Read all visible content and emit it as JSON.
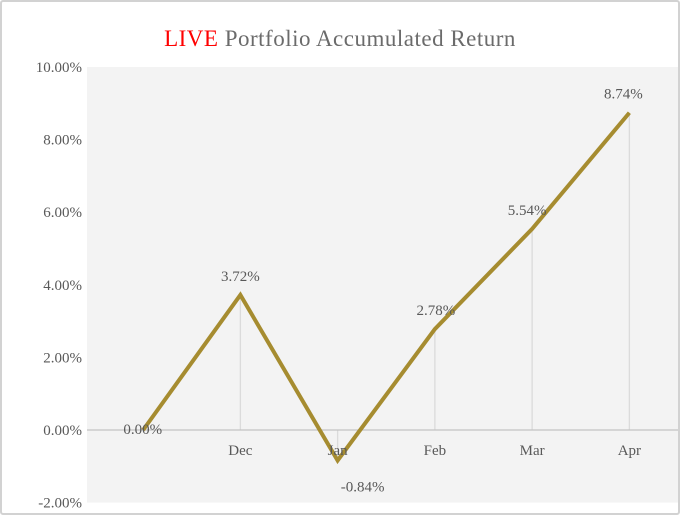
{
  "title": {
    "highlight": "LIVE",
    "text": " Portfolio Accumulated Return"
  },
  "colors": {
    "series_line": "#A68C30",
    "title_highlight": "#FF0000",
    "title_text": "#6B6B6B",
    "axis_text": "#595959",
    "plot_background": "#F3F3F3",
    "axis_line": "#C3C3C3",
    "drop_line": "#DBDBDB",
    "frame_border": "#D2D2D2"
  },
  "chart_data": {
    "type": "line",
    "title": "LIVE Portfolio Accumulated Return",
    "categories": [
      "",
      "Dec",
      "Jan",
      "Feb",
      "Mar",
      "Apr"
    ],
    "series": [
      {
        "name": "Portfolio Accumulated Return",
        "values": [
          0.0,
          3.72,
          -0.84,
          2.78,
          5.54,
          8.74
        ]
      }
    ],
    "point_labels": [
      "0.00%",
      "3.72%",
      "-0.84%",
      "2.78%",
      "5.54%",
      "8.74%"
    ],
    "label_positions": [
      "left",
      "above",
      "below",
      "above",
      "above",
      "above"
    ],
    "label_dx": [
      0,
      0,
      25,
      1,
      -5,
      -6
    ],
    "y_ticks": [
      {
        "value": 10,
        "label": "10.00%"
      },
      {
        "value": 8,
        "label": "8.00%"
      },
      {
        "value": 6,
        "label": "6.00%"
      },
      {
        "value": 4,
        "label": "4.00%"
      },
      {
        "value": 2,
        "label": "2.00%"
      },
      {
        "value": 0,
        "label": "0.00%"
      },
      {
        "value": -2,
        "label": "-2.00%"
      }
    ],
    "ylim": [
      -2,
      10
    ],
    "xlabel": "",
    "ylabel": "",
    "unit": "%",
    "grid": "drop-lines-from-points-only",
    "legend": "none"
  }
}
